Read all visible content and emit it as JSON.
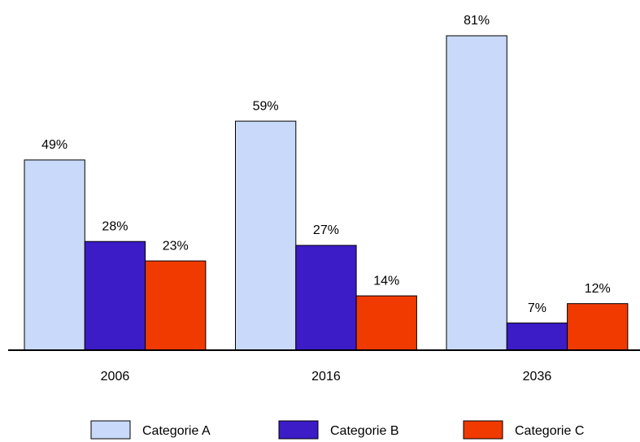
{
  "chart_data": {
    "type": "bar",
    "categories": [
      "2006",
      "2016",
      "2036"
    ],
    "series": [
      {
        "name": "Categorie A",
        "color": "#c9d9f9",
        "values": [
          49,
          59,
          81
        ],
        "value_labels": [
          "49%",
          "59%",
          "81%"
        ]
      },
      {
        "name": "Categorie B",
        "color": "#3b1cc6",
        "values": [
          28,
          27,
          7
        ],
        "value_labels": [
          "28%",
          "27%",
          "7%"
        ]
      },
      {
        "name": "Categorie C",
        "color": "#f03a00",
        "values": [
          23,
          14,
          12
        ],
        "value_labels": [
          "23%",
          "14%",
          "12%"
        ]
      }
    ]
  }
}
